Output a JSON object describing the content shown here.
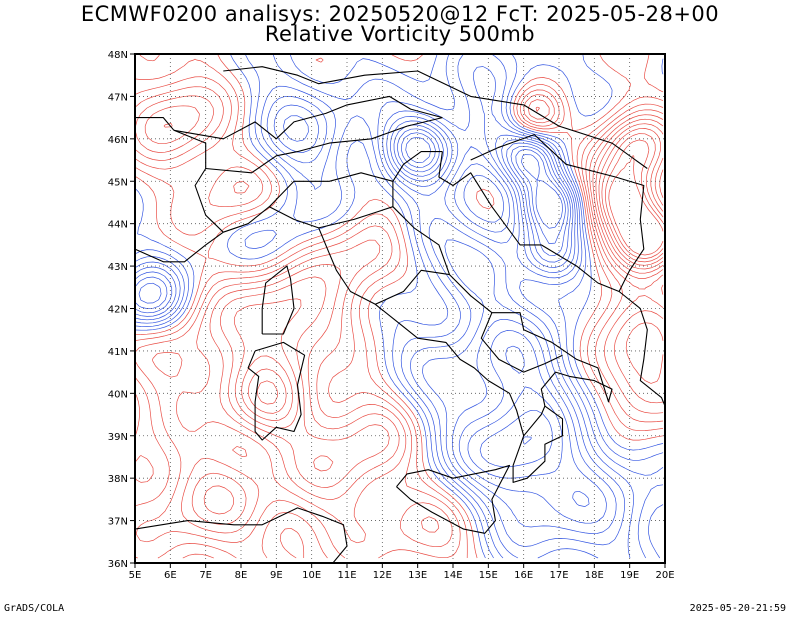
{
  "title": {
    "line1": "ECMWF0200 analisys: 20250520@12 FcT: 2025-05-28+00",
    "line2": "Relative Vorticity 500mb"
  },
  "axes": {
    "lon_labels": [
      "5E",
      "6E",
      "7E",
      "8E",
      "9E",
      "10E",
      "11E",
      "12E",
      "13E",
      "14E",
      "15E",
      "16E",
      "17E",
      "18E",
      "19E",
      "20E"
    ],
    "lat_labels": [
      "48N",
      "47N",
      "46N",
      "45N",
      "44N",
      "43N",
      "42N",
      "41N",
      "40N",
      "39N",
      "38N",
      "37N",
      "36N"
    ],
    "lon_range": [
      5,
      20
    ],
    "lat_range": [
      36,
      48
    ]
  },
  "colors": {
    "positive": "#e8453c",
    "negative": "#2b4fe0",
    "coast": "#000000",
    "grid": "#555555"
  },
  "footer": {
    "left": "GrADS/COLA",
    "right": "2025-05-20-21:59"
  }
}
